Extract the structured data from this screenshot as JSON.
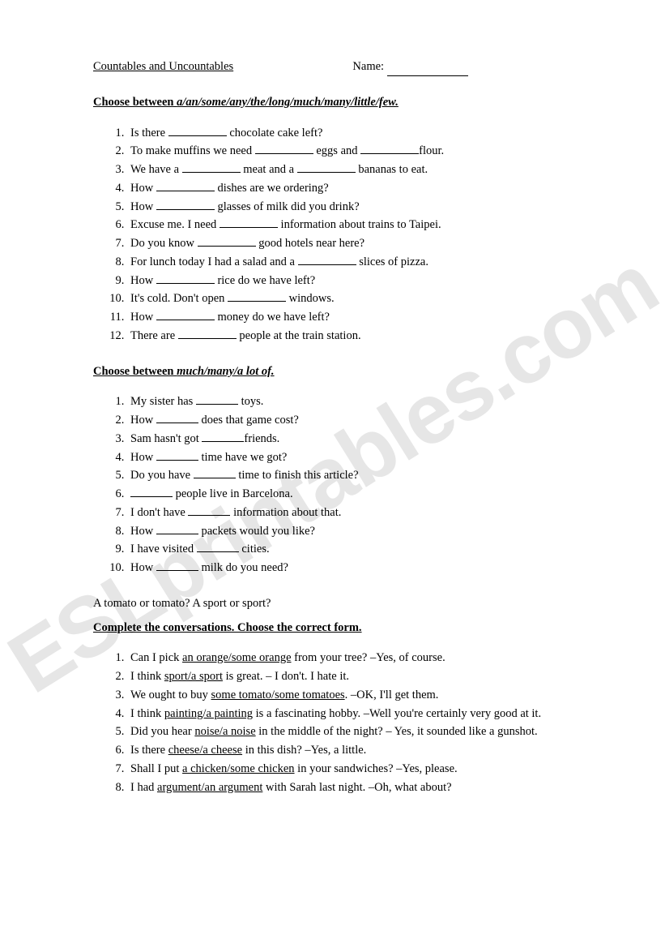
{
  "watermark": "ESLprintables.com",
  "header": {
    "title": "Countables and Uncountables",
    "name_label": "Name:"
  },
  "section1": {
    "heading_prefix": "Choose between ",
    "heading_choices": "a/an/some/any/the/long/much/many/little/few.",
    "items": [
      {
        "pre": "Is there ",
        "post": " chocolate cake left?",
        "blank": "long"
      },
      {
        "text": "To make muffins we need ",
        "mid": " eggs and ",
        "post": "flour.",
        "two": true
      },
      {
        "text": "We have a ",
        "mid": " meat and a ",
        "post": " bananas to eat.",
        "two": true
      },
      {
        "pre": "How ",
        "post": " dishes are we ordering?",
        "blank": "long"
      },
      {
        "pre": "How ",
        "post": " glasses of milk did you drink?",
        "blank": "long"
      },
      {
        "pre": "Excuse me. I need ",
        "post": " information about trains to Taipei.",
        "blank": "long"
      },
      {
        "pre": "Do you know ",
        "post": " good hotels near here?",
        "blank": "long"
      },
      {
        "pre": "For lunch today I had a salad and a ",
        "post": " slices of pizza.",
        "blank": "long"
      },
      {
        "pre": "How ",
        "post": " rice do we have left?",
        "blank": "long"
      },
      {
        "pre": "It's cold. Don't open ",
        "post": " windows.",
        "blank": "long"
      },
      {
        "pre": "How ",
        "post": " money do we have left?",
        "blank": "long"
      },
      {
        "pre": "There are ",
        "post": " people at the train station.",
        "blank": "long"
      }
    ]
  },
  "section2": {
    "heading_prefix": "Choose between ",
    "heading_choices": "much/many/a lot of.",
    "items": [
      {
        "pre": "My sister has ",
        "post": " toys."
      },
      {
        "pre": "How ",
        "post": " does that game cost?"
      },
      {
        "pre": "Sam hasn't got ",
        "post": "friends."
      },
      {
        "pre": "How ",
        "post": " time have we got?"
      },
      {
        "pre": "Do you have ",
        "post": " time to finish this article?"
      },
      {
        "pre": "",
        "post": " people live in Barcelona."
      },
      {
        "pre": "I don't have ",
        "post": " information about that."
      },
      {
        "pre": "How ",
        "post": " packets would you like?"
      },
      {
        "pre": "I have visited ",
        "post": " cities."
      },
      {
        "pre": "How ",
        "post": " milk do you need?"
      }
    ]
  },
  "section3": {
    "intro": "A tomato or tomato? A sport or sport?",
    "heading": "Complete the conversations. Choose the correct form.",
    "items": [
      {
        "a": "Can I pick ",
        "c": "an orange/some orange",
        "b": " from your tree? –Yes, of course."
      },
      {
        "a": "I think ",
        "c": " sport/a sport",
        "b": " is great. – I don't. I hate it."
      },
      {
        "a": "We ought to buy ",
        "c": "some tomato/some tomatoes",
        "b": ". –OK, I'll get them."
      },
      {
        "a": "I think ",
        "c": "painting/a painting",
        "b": " is a fascinating hobby. –Well you're certainly very good at it."
      },
      {
        "a": "Did you hear ",
        "c": "noise/a noise",
        "b": " in the middle of the night? – Yes, it sounded like a gunshot."
      },
      {
        "a": "Is there ",
        "c": "cheese/a cheese",
        "b": " in this dish? –Yes, a little."
      },
      {
        "a": "Shall I put ",
        "c": "a chicken/some chicken",
        "b": " in your sandwiches? –Yes, please."
      },
      {
        "a": "I had ",
        "c": "argument/an argument",
        "b": " with Sarah last night. –Oh, what about?"
      }
    ]
  }
}
